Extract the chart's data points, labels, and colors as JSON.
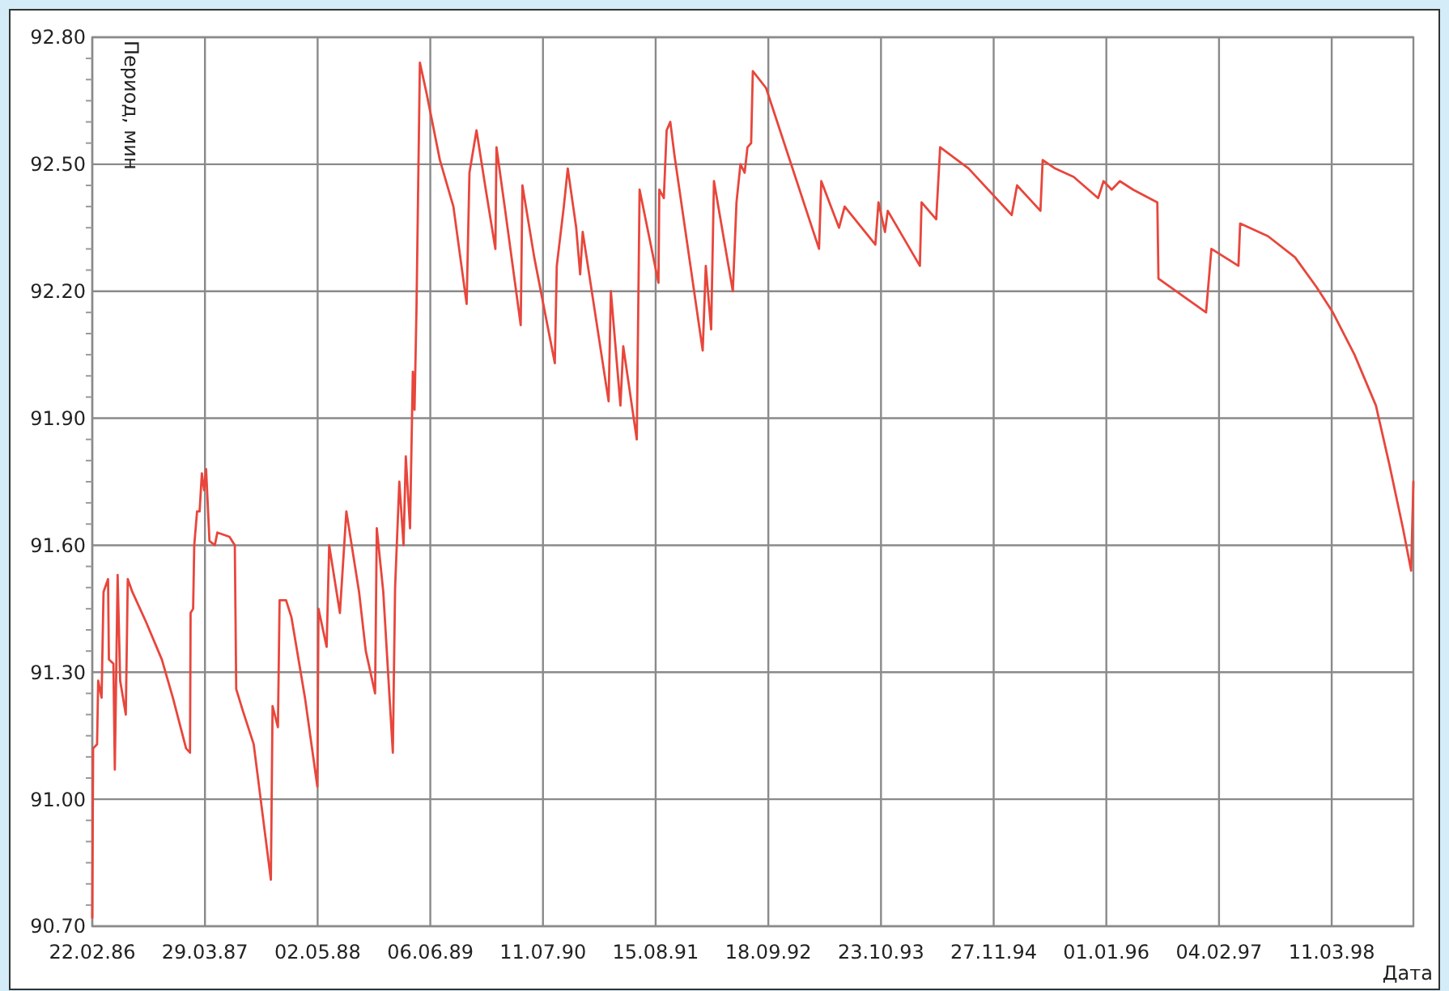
{
  "chart_data": {
    "type": "line",
    "xlabel": "Дата",
    "ylabel": "Период, мин",
    "xlim": [
      "1986-02-22",
      "1998-12-26"
    ],
    "ylim": [
      90.7,
      92.8
    ],
    "xticks": [
      {
        "value": "1986-02-22",
        "label": "22.02.86"
      },
      {
        "value": "1987-03-29",
        "label": "29.03.87"
      },
      {
        "value": "1988-05-02",
        "label": "02.05.88"
      },
      {
        "value": "1989-06-06",
        "label": "06.06.89"
      },
      {
        "value": "1990-07-11",
        "label": "11.07.90"
      },
      {
        "value": "1991-08-15",
        "label": "15.08.91"
      },
      {
        "value": "1992-09-18",
        "label": "18.09.92"
      },
      {
        "value": "1993-10-23",
        "label": "23.10.93"
      },
      {
        "value": "1994-11-27",
        "label": "27.11.94"
      },
      {
        "value": "1996-01-01",
        "label": "01.01.96"
      },
      {
        "value": "1997-02-04",
        "label": "04.02.97"
      },
      {
        "value": "1998-03-11",
        "label": "11.03.98"
      }
    ],
    "yticks": [
      {
        "value": 90.7,
        "label": "90.70"
      },
      {
        "value": 91.0,
        "label": "91.00"
      },
      {
        "value": 91.3,
        "label": "91.30"
      },
      {
        "value": 91.6,
        "label": "91.60"
      },
      {
        "value": 91.9,
        "label": "91.90"
      },
      {
        "value": 92.2,
        "label": "92.20"
      },
      {
        "value": 92.5,
        "label": "92.50"
      },
      {
        "value": 92.8,
        "label": "92.80"
      }
    ],
    "grid": true,
    "marker": "none",
    "line_style": "solid",
    "x": [
      "1986-02-22",
      "1986-02-25",
      "1986-03-11",
      "1986-03-15",
      "1986-03-27",
      "1986-04-03",
      "1986-04-19",
      "1986-04-22",
      "1986-05-08",
      "1986-05-13",
      "1986-05-23",
      "1986-06-01",
      "1986-06-21",
      "1986-06-28",
      "1986-07-14",
      "1986-08-31",
      "1986-10-27",
      "1986-12-05",
      "1987-01-21",
      "1987-02-04",
      "1987-02-06",
      "1987-02-15",
      "1987-02-19",
      "1987-03-01",
      "1987-03-10",
      "1987-03-18",
      "1987-03-26",
      "1987-04-02",
      "1987-04-14",
      "1987-05-03",
      "1987-05-12",
      "1987-06-24",
      "1987-07-13",
      "1987-07-18",
      "1987-08-10",
      "1987-09-18",
      "1987-11-18",
      "1987-11-24",
      "1987-12-13",
      "1987-12-19",
      "1988-01-11",
      "1988-01-30",
      "1988-03-18",
      "1988-05-01",
      "1988-05-05",
      "1988-06-03",
      "1988-06-12",
      "1988-07-20",
      "1988-08-12",
      "1988-09-26",
      "1988-10-20",
      "1988-11-22",
      "1988-11-28",
      "1988-12-21",
      "1989-01-24",
      "1989-02-01",
      "1989-02-16",
      "1989-03-03",
      "1989-03-11",
      "1989-03-26",
      "1989-04-05",
      "1989-04-11",
      "1989-04-18",
      "1989-04-30",
      "1989-05-23",
      "1989-07-10",
      "1989-08-27",
      "1989-10-13",
      "1989-10-23",
      "1989-11-17",
      "1989-12-20",
      "1990-01-23",
      "1990-01-27",
      "1990-02-25",
      "1990-04-23",
      "1990-04-29",
      "1990-06-10",
      "1990-08-22",
      "1990-08-29",
      "1990-09-23",
      "1990-10-07",
      "1990-11-06",
      "1990-11-20",
      "1990-11-29",
      "1991-03-01",
      "1991-03-09",
      "1991-04-12",
      "1991-04-22",
      "1991-06-09",
      "1991-06-19",
      "1991-08-25",
      "1991-08-28",
      "1991-09-13",
      "1991-09-23",
      "1991-10-06",
      "1991-10-21",
      "1992-01-29",
      "1992-02-09",
      "1992-02-28",
      "1992-03-09",
      "1992-05-15",
      "1992-05-28",
      "1992-06-11",
      "1992-06-26",
      "1992-07-06",
      "1992-07-19",
      "1992-07-25",
      "1992-09-10",
      "1993-03-17",
      "1993-03-25",
      "1993-05-27",
      "1993-06-16",
      "1993-10-03",
      "1993-10-14",
      "1993-11-06",
      "1993-11-16",
      "1994-03-10",
      "1994-03-16",
      "1994-05-07",
      "1994-05-21",
      "1994-08-30",
      "1995-01-30",
      "1995-02-18",
      "1995-05-12",
      "1995-05-20",
      "1995-07-03",
      "1995-09-07",
      "1995-12-03",
      "1995-12-22",
      "1996-01-20",
      "1996-02-18",
      "1996-04-05",
      "1996-06-30",
      "1996-07-04",
      "1996-12-20",
      "1997-01-08",
      "1997-04-14",
      "1997-04-20",
      "1997-07-28",
      "1997-11-01",
      "1998-01-16",
      "1998-03-15",
      "1998-05-31",
      "1998-08-15",
      "1998-10-02",
      "1998-11-19",
      "1998-12-18",
      "1998-12-26"
    ],
    "series": [
      {
        "color": "#e8463c",
        "values": [
          90.72,
          91.12,
          91.13,
          91.28,
          91.24,
          91.49,
          91.52,
          91.33,
          91.32,
          91.07,
          91.53,
          91.28,
          91.2,
          91.52,
          91.49,
          91.42,
          91.33,
          91.24,
          91.12,
          91.11,
          91.44,
          91.45,
          91.6,
          91.68,
          91.68,
          91.77,
          91.73,
          91.78,
          91.61,
          91.6,
          91.63,
          91.62,
          91.6,
          91.26,
          91.21,
          91.13,
          90.81,
          91.22,
          91.17,
          91.47,
          91.47,
          91.43,
          91.24,
          91.03,
          91.45,
          91.36,
          91.6,
          91.44,
          91.68,
          91.49,
          91.35,
          91.25,
          91.64,
          91.49,
          91.11,
          91.5,
          91.75,
          91.6,
          91.81,
          91.64,
          92.01,
          91.92,
          92.16,
          92.74,
          92.67,
          92.51,
          92.4,
          92.17,
          92.48,
          92.58,
          92.44,
          92.3,
          92.54,
          92.4,
          92.12,
          92.45,
          92.28,
          92.03,
          92.26,
          92.4,
          92.49,
          92.35,
          92.24,
          92.34,
          91.94,
          92.2,
          91.93,
          92.07,
          91.85,
          92.44,
          92.22,
          92.44,
          92.42,
          92.58,
          92.6,
          92.52,
          92.06,
          92.26,
          92.11,
          92.46,
          92.2,
          92.41,
          92.5,
          92.48,
          92.54,
          92.55,
          92.72,
          92.68,
          92.3,
          92.46,
          92.35,
          92.4,
          92.31,
          92.41,
          92.34,
          92.39,
          92.26,
          92.41,
          92.37,
          92.54,
          92.49,
          92.38,
          92.45,
          92.39,
          92.51,
          92.49,
          92.47,
          92.42,
          92.46,
          92.44,
          92.46,
          92.44,
          92.41,
          92.23,
          92.15,
          92.3,
          92.26,
          92.36,
          92.33,
          92.28,
          92.21,
          92.15,
          92.05,
          91.93,
          91.79,
          91.64,
          91.54,
          91.75
        ]
      }
    ]
  }
}
